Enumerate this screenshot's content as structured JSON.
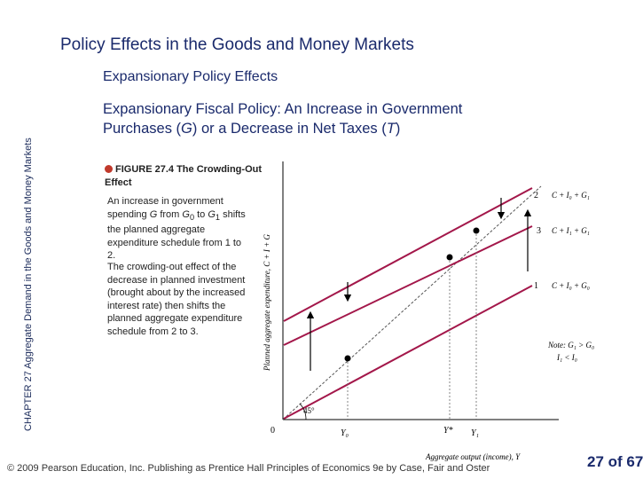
{
  "side_label": "CHAPTER 27  Aggregate Demand in the Goods and Money Markets",
  "title": "Policy Effects in the Goods and Money Markets",
  "subtitle": "Expansionary Policy Effects",
  "heading": {
    "line1": "Expansionary Fiscal Policy: An Increase in Government",
    "line2_pre": "Purchases (",
    "g": "G",
    "line2_mid": ") or a Decrease in Net Taxes (",
    "t": "T",
    "line2_post": ")"
  },
  "figure": {
    "label": "FIGURE 27.4  The Crowding-Out Effect",
    "para1": {
      "pre": "An increase in government spending ",
      "g": "G",
      "mid1": " from ",
      "g0": "G",
      "sub0": "0",
      "mid2": " to ",
      "g1": "G",
      "sub1": "1",
      "post": " shifts the planned aggregate expenditure schedule from 1 to 2."
    },
    "para2": "The crowding-out effect of the decrease in planned investment (brought about by the increased interest rate) then shifts the planned aggregate expenditure schedule from 2 to 3."
  },
  "graph": {
    "y_axis_label": "Planned aggregate expenditure, C + I + G",
    "x_axis_label": "Aggregate output (income), Y",
    "origin": "0",
    "angle_label": "45°",
    "x_ticks": [
      "Y₀",
      "Y*",
      "Y₁"
    ],
    "line_numbers": [
      "2",
      "3",
      "1"
    ],
    "line_labels": [
      "C + I₀ + G₁",
      "C + I₁ + G₁",
      "C + I₀ + G₀"
    ],
    "note_line1": "Note: G₁ > G₀",
    "note_line2": "I₁ < I₀"
  },
  "footer": "© 2009 Pearson Education, Inc. Publishing as Prentice Hall   Principles of Economics 9e by Case, Fair and Oster",
  "page": "27 of 67",
  "colors": {
    "title": "#1a2a6c",
    "aggregate_expenditure_lines": "#a3174a",
    "marker": "#c0392b"
  }
}
